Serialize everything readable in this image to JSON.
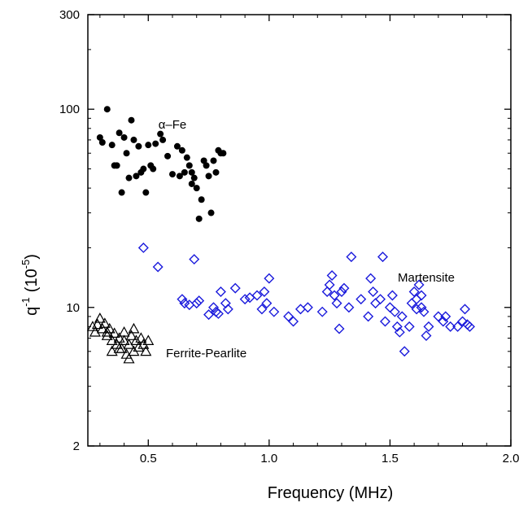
{
  "chart_data": {
    "type": "scatter",
    "xlabel": "Frequency (MHz)",
    "ylabel": "q",
    "ylabel_sup": "-1",
    "ylabel_unit": "(10",
    "ylabel_unit_sup": "-5",
    "ylabel_close": ")",
    "xlim": [
      0.25,
      2.0
    ],
    "ylim": [
      2,
      300
    ],
    "yscale": "log",
    "grid": false,
    "x_ticks": [
      {
        "value": 0.5,
        "label": "0.5"
      },
      {
        "value": 1.0,
        "label": "1.0"
      },
      {
        "value": 1.5,
        "label": "1.5"
      },
      {
        "value": 2.0,
        "label": "2.0"
      }
    ],
    "y_ticks": [
      {
        "value": 2,
        "label": "2"
      },
      {
        "value": 10,
        "label": "10"
      },
      {
        "value": 100,
        "label": "100"
      },
      {
        "value": 300,
        "label": "300"
      }
    ],
    "series": [
      {
        "name": "α–Fe",
        "marker": "filled-circle",
        "color": "#000000",
        "points": [
          [
            0.3,
            72
          ],
          [
            0.31,
            68
          ],
          [
            0.33,
            100
          ],
          [
            0.35,
            66
          ],
          [
            0.36,
            52
          ],
          [
            0.37,
            52
          ],
          [
            0.38,
            76
          ],
          [
            0.39,
            38
          ],
          [
            0.4,
            72
          ],
          [
            0.41,
            60
          ],
          [
            0.42,
            45
          ],
          [
            0.43,
            88
          ],
          [
            0.44,
            70
          ],
          [
            0.45,
            46
          ],
          [
            0.46,
            65
          ],
          [
            0.47,
            48
          ],
          [
            0.48,
            50
          ],
          [
            0.49,
            38
          ],
          [
            0.5,
            66
          ],
          [
            0.51,
            52
          ],
          [
            0.52,
            50
          ],
          [
            0.53,
            67
          ],
          [
            0.55,
            75
          ],
          [
            0.56,
            70
          ],
          [
            0.58,
            58
          ],
          [
            0.6,
            47
          ],
          [
            0.62,
            65
          ],
          [
            0.63,
            46
          ],
          [
            0.64,
            62
          ],
          [
            0.65,
            48
          ],
          [
            0.66,
            57
          ],
          [
            0.67,
            52
          ],
          [
            0.68,
            48
          ],
          [
            0.69,
            45
          ],
          [
            0.7,
            40
          ],
          [
            0.71,
            28
          ],
          [
            0.72,
            35
          ],
          [
            0.74,
            52
          ],
          [
            0.75,
            46
          ],
          [
            0.76,
            30
          ],
          [
            0.77,
            55
          ],
          [
            0.78,
            48
          ],
          [
            0.79,
            62
          ],
          [
            0.8,
            60
          ],
          [
            0.81,
            60
          ],
          [
            0.68,
            42
          ],
          [
            0.73,
            55
          ]
        ]
      },
      {
        "name": "Martensite",
        "marker": "open-diamond",
        "color": "#1a1adc",
        "points": [
          [
            0.48,
            20
          ],
          [
            0.54,
            16
          ],
          [
            0.64,
            11
          ],
          [
            0.65,
            10.5
          ],
          [
            0.67,
            10.3
          ],
          [
            0.69,
            17.5
          ],
          [
            0.7,
            10.5
          ],
          [
            0.71,
            10.8
          ],
          [
            0.75,
            9.2
          ],
          [
            0.77,
            10.0
          ],
          [
            0.78,
            9.5
          ],
          [
            0.79,
            9.3
          ],
          [
            0.8,
            12
          ],
          [
            0.82,
            10.5
          ],
          [
            0.83,
            9.8
          ],
          [
            0.86,
            12.5
          ],
          [
            0.9,
            11
          ],
          [
            0.92,
            11.2
          ],
          [
            0.95,
            11.5
          ],
          [
            0.97,
            9.8
          ],
          [
            0.98,
            12
          ],
          [
            0.99,
            10.5
          ],
          [
            1.0,
            14
          ],
          [
            1.02,
            9.5
          ],
          [
            1.08,
            9.0
          ],
          [
            1.1,
            8.5
          ],
          [
            1.13,
            9.8
          ],
          [
            1.16,
            10.0
          ],
          [
            1.22,
            9.5
          ],
          [
            1.24,
            12
          ],
          [
            1.25,
            13
          ],
          [
            1.26,
            14.5
          ],
          [
            1.27,
            11.5
          ],
          [
            1.28,
            10.5
          ],
          [
            1.29,
            7.8
          ],
          [
            1.3,
            12
          ],
          [
            1.31,
            12.5
          ],
          [
            1.33,
            10
          ],
          [
            1.34,
            18
          ],
          [
            1.38,
            11
          ],
          [
            1.41,
            9.0
          ],
          [
            1.42,
            14
          ],
          [
            1.43,
            12
          ],
          [
            1.44,
            10.5
          ],
          [
            1.46,
            11
          ],
          [
            1.47,
            18
          ],
          [
            1.48,
            8.5
          ],
          [
            1.5,
            10
          ],
          [
            1.51,
            11.5
          ],
          [
            1.52,
            9.5
          ],
          [
            1.53,
            8.0
          ],
          [
            1.54,
            7.5
          ],
          [
            1.55,
            9.0
          ],
          [
            1.56,
            6.0
          ],
          [
            1.58,
            8.0
          ],
          [
            1.59,
            10.5
          ],
          [
            1.6,
            12
          ],
          [
            1.61,
            11
          ],
          [
            1.62,
            13
          ],
          [
            1.63,
            10
          ],
          [
            1.64,
            9.5
          ],
          [
            1.65,
            7.2
          ],
          [
            1.66,
            8.0
          ],
          [
            1.7,
            9.0
          ],
          [
            1.72,
            8.5
          ],
          [
            1.73,
            9.0
          ],
          [
            1.75,
            8.0
          ],
          [
            1.78,
            8.0
          ],
          [
            1.8,
            8.5
          ],
          [
            1.81,
            9.8
          ],
          [
            1.82,
            8.2
          ],
          [
            1.83,
            8.0
          ],
          [
            1.61,
            9.8
          ],
          [
            1.63,
            11.5
          ]
        ]
      },
      {
        "name": "Ferrite-Pearlite",
        "marker": "open-triangle",
        "color": "#000000",
        "points": [
          [
            0.27,
            8.0
          ],
          [
            0.28,
            7.5
          ],
          [
            0.29,
            8.2
          ],
          [
            0.3,
            8.8
          ],
          [
            0.31,
            7.8
          ],
          [
            0.32,
            8.3
          ],
          [
            0.33,
            7.2
          ],
          [
            0.34,
            7.8
          ],
          [
            0.35,
            6.8
          ],
          [
            0.36,
            7.4
          ],
          [
            0.37,
            6.5
          ],
          [
            0.38,
            7.0
          ],
          [
            0.39,
            6.2
          ],
          [
            0.4,
            7.5
          ],
          [
            0.41,
            5.8
          ],
          [
            0.42,
            6.5
          ],
          [
            0.43,
            7.2
          ],
          [
            0.44,
            6.0
          ],
          [
            0.45,
            6.8
          ],
          [
            0.46,
            6.3
          ],
          [
            0.47,
            7.0
          ],
          [
            0.48,
            6.5
          ],
          [
            0.49,
            6.0
          ],
          [
            0.5,
            6.8
          ],
          [
            0.35,
            6.0
          ],
          [
            0.38,
            6.2
          ],
          [
            0.42,
            5.5
          ],
          [
            0.44,
            7.8
          ],
          [
            0.4,
            6.8
          ],
          [
            0.33,
            7.5
          ]
        ]
      }
    ],
    "annotations": [
      {
        "text": "α–Fe",
        "x": 0.6,
        "y": 80
      },
      {
        "text": "Martensite",
        "x": 1.65,
        "y": 13.5
      },
      {
        "text": "Ferrite-Pearlite",
        "x": 0.74,
        "y": 5.6
      }
    ]
  }
}
